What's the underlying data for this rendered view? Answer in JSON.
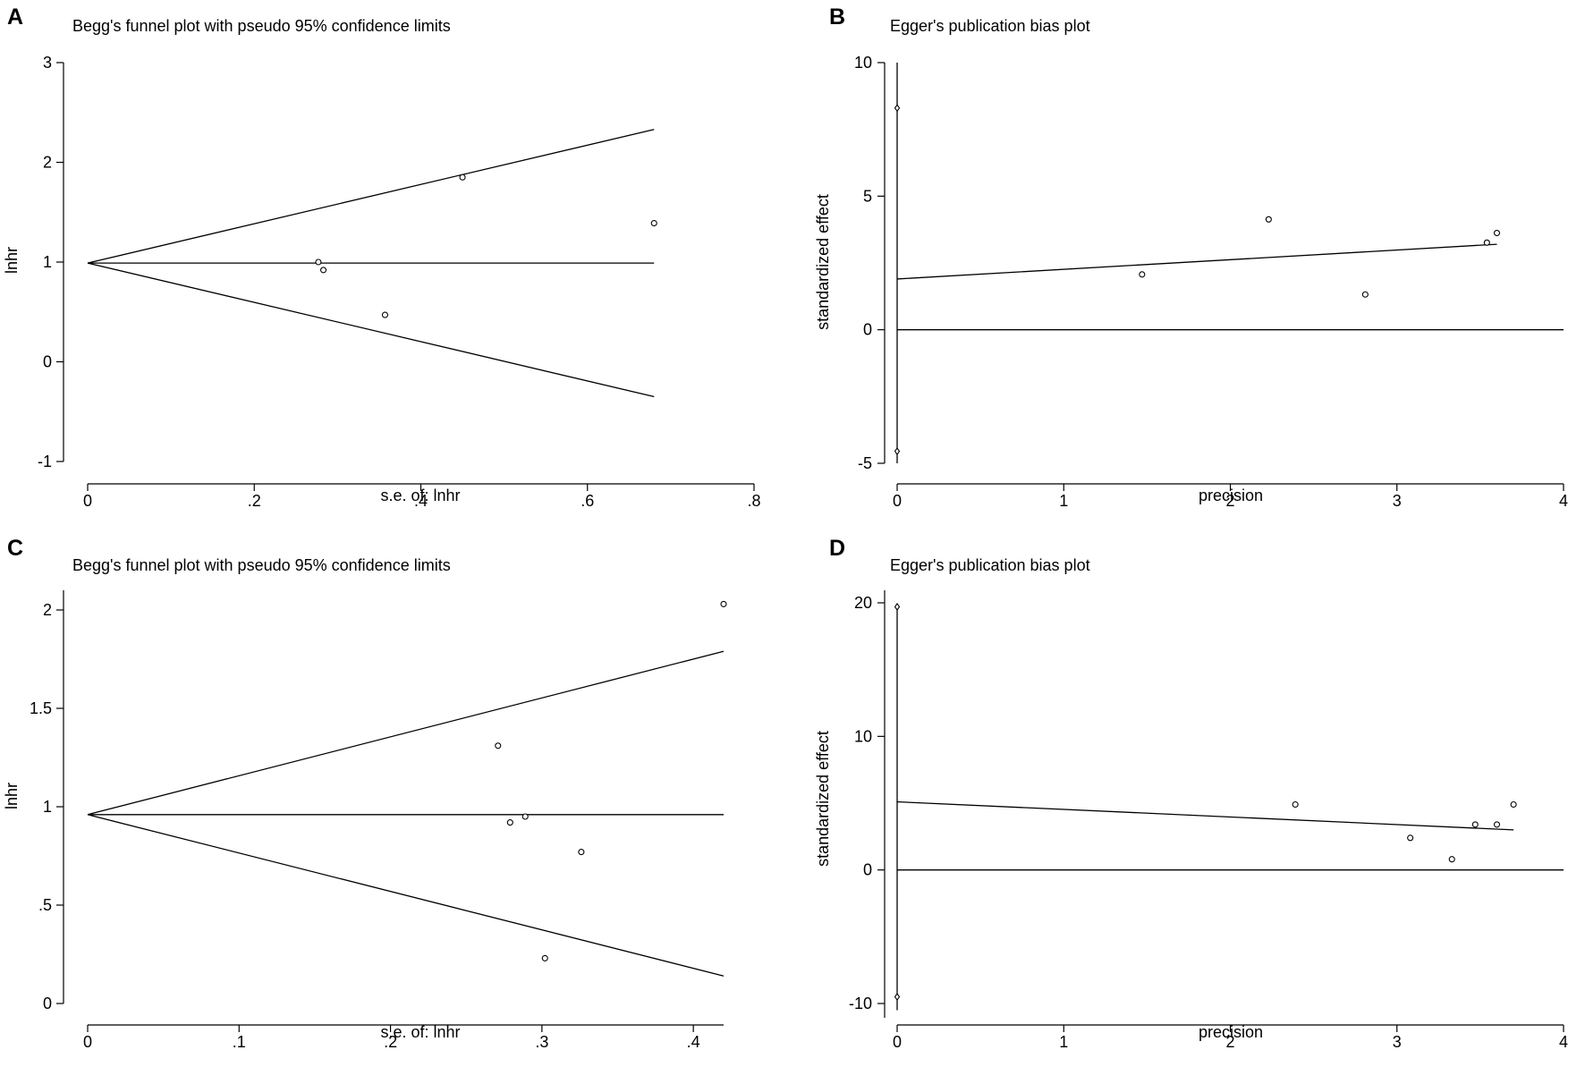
{
  "colors": {
    "ink": "#000000",
    "background": "#ffffff"
  },
  "chart_data": [
    {
      "panel": "A",
      "type": "scatter",
      "plot_kind": "begg",
      "title": "Begg's funnel plot with pseudo 95% confidence limits",
      "xlabel": "s.e. of: lnhr",
      "ylabel": "lnhr",
      "xlim": [
        0,
        0.8
      ],
      "ylim": [
        -1,
        3
      ],
      "x_ticks": [
        0,
        0.2,
        0.4,
        0.6,
        0.8
      ],
      "x_tick_labels": [
        "0",
        ".2",
        ".4",
        ".6",
        ".8"
      ],
      "y_ticks": [
        -1,
        0,
        1,
        2,
        3
      ],
      "y_tick_labels": [
        "-1",
        "0",
        "1",
        "2",
        "3"
      ],
      "pooled_estimate": 0.99,
      "limit_line_x_range": [
        0,
        0.68
      ],
      "upper_limit_end": 2.33,
      "lower_limit_end": -0.35,
      "points": [
        {
          "x": 0.277,
          "y": 1.0
        },
        {
          "x": 0.283,
          "y": 0.92
        },
        {
          "x": 0.357,
          "y": 0.47
        },
        {
          "x": 0.45,
          "y": 1.85
        },
        {
          "x": 0.68,
          "y": 1.39
        }
      ]
    },
    {
      "panel": "B",
      "type": "scatter",
      "plot_kind": "egger",
      "title": "Egger's publication bias plot",
      "xlabel": "precision",
      "ylabel": "standardized effect",
      "xlim": [
        0,
        4
      ],
      "ylim": [
        -5,
        10
      ],
      "x_ticks": [
        0,
        1,
        2,
        3,
        4
      ],
      "x_tick_labels": [
        "0",
        "1",
        "2",
        "3",
        "4"
      ],
      "y_ticks": [
        -5,
        0,
        5,
        10
      ],
      "y_tick_labels": [
        "-5",
        "0",
        "5",
        "10"
      ],
      "ci_range": [
        -5.0,
        10.0
      ],
      "ci_markers": [
        8.3,
        -4.55
      ],
      "regression": {
        "x": [
          0,
          3.6
        ],
        "y": [
          1.9,
          3.2
        ]
      },
      "points": [
        {
          "x": 1.47,
          "y": 2.07
        },
        {
          "x": 2.23,
          "y": 4.13
        },
        {
          "x": 2.81,
          "y": 1.32
        },
        {
          "x": 3.54,
          "y": 3.26
        },
        {
          "x": 3.6,
          "y": 3.62
        }
      ]
    },
    {
      "panel": "C",
      "type": "scatter",
      "plot_kind": "begg",
      "title": "Begg's funnel plot with pseudo 95% confidence limits",
      "xlabel": "s.e. of: lnhr",
      "ylabel": "lnhr",
      "xlim": [
        0,
        0.42
      ],
      "ylim": [
        0,
        2
      ],
      "x_ticks": [
        0,
        0.1,
        0.2,
        0.3,
        0.4
      ],
      "x_tick_labels": [
        "0",
        ".1",
        ".2",
        ".3",
        ".4"
      ],
      "y_ticks": [
        0,
        0.5,
        1,
        1.5,
        2
      ],
      "y_tick_labels": [
        "0",
        ".5",
        "1",
        "1.5",
        "2"
      ],
      "pooled_estimate": 0.96,
      "limit_line_x_range": [
        0,
        0.42
      ],
      "upper_limit_end": 1.79,
      "lower_limit_end": 0.14,
      "points": [
        {
          "x": 0.271,
          "y": 1.31
        },
        {
          "x": 0.279,
          "y": 0.92
        },
        {
          "x": 0.289,
          "y": 0.95
        },
        {
          "x": 0.302,
          "y": 0.23
        },
        {
          "x": 0.326,
          "y": 0.77
        },
        {
          "x": 0.42,
          "y": 2.03
        }
      ]
    },
    {
      "panel": "D",
      "type": "scatter",
      "plot_kind": "egger",
      "title": "Egger's publication bias plot",
      "xlabel": "precision",
      "ylabel": "standardized effect",
      "xlim": [
        0,
        4
      ],
      "ylim": [
        -10,
        20
      ],
      "x_ticks": [
        0,
        1,
        2,
        3,
        4
      ],
      "x_tick_labels": [
        "0",
        "1",
        "2",
        "3",
        "4"
      ],
      "y_ticks": [
        -10,
        0,
        10,
        20
      ],
      "y_tick_labels": [
        "-10",
        "0",
        "10",
        "20"
      ],
      "ci_range": [
        -10.5,
        19.8
      ],
      "ci_markers": [
        19.7,
        -9.5
      ],
      "regression": {
        "x": [
          0,
          3.7
        ],
        "y": [
          5.1,
          3.0
        ]
      },
      "points": [
        {
          "x": 2.39,
          "y": 4.9
        },
        {
          "x": 3.08,
          "y": 2.4
        },
        {
          "x": 3.33,
          "y": 0.8
        },
        {
          "x": 3.47,
          "y": 3.4
        },
        {
          "x": 3.6,
          "y": 3.4
        },
        {
          "x": 3.7,
          "y": 4.9
        }
      ]
    }
  ]
}
